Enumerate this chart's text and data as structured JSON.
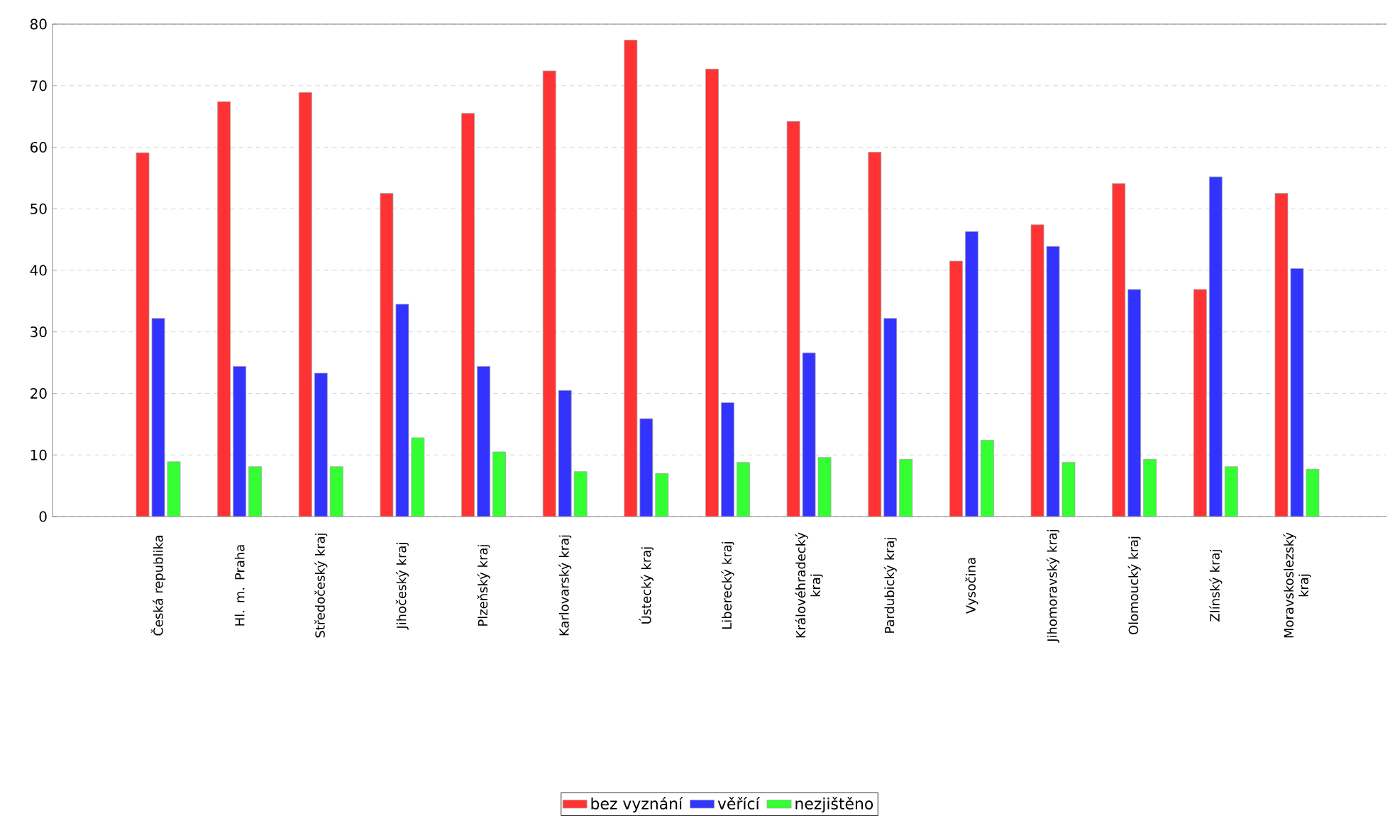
{
  "chart_data": {
    "type": "bar",
    "categories": [
      "Česká republika",
      "Hl. m. Praha",
      "Středočeský kraj",
      "Jihočeský kraj",
      "Plzeňský kraj",
      "Karlovarský kraj",
      "Ústecký kraj",
      "Liberecký kraj",
      "Královéhradecký kraj",
      "Pardubický kraj",
      "Vysočina",
      "Jihomoravský kraj",
      "Olomoucký kraj",
      "Zlínský kraj",
      "Moravskoslezský kraj"
    ],
    "series": [
      {
        "name": "bez vyznání",
        "color": "#ff3333",
        "values": [
          59.1,
          67.4,
          68.9,
          52.5,
          65.5,
          72.4,
          77.4,
          72.7,
          64.2,
          59.2,
          41.5,
          47.4,
          54.1,
          36.9,
          52.5
        ]
      },
      {
        "name": "věřící",
        "color": "#3333ff",
        "values": [
          32.2,
          24.4,
          23.3,
          34.5,
          24.4,
          20.5,
          15.9,
          18.5,
          26.6,
          32.2,
          46.3,
          43.9,
          36.9,
          55.2,
          40.3
        ]
      },
      {
        "name": "nezjištěno",
        "color": "#33ff33",
        "values": [
          8.9,
          8.1,
          8.1,
          12.8,
          10.5,
          7.3,
          7.0,
          8.8,
          9.6,
          9.3,
          12.4,
          8.8,
          9.3,
          8.1,
          7.7
        ]
      }
    ],
    "ylim": [
      0,
      80
    ],
    "yticks": [
      0,
      10,
      20,
      30,
      40,
      50,
      60,
      70,
      80
    ],
    "grid": "y",
    "legend": "bottom"
  }
}
